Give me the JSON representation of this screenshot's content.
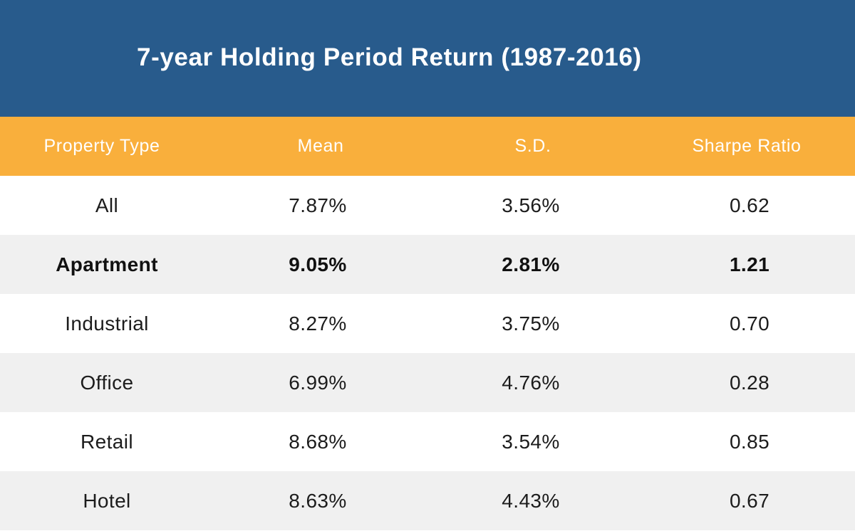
{
  "chart_data": {
    "type": "table",
    "title": "7-year Holding Period Return (1987-2016)",
    "columns": [
      "Property Type",
      "Mean",
      "S.D.",
      "Sharpe Ratio"
    ],
    "rows": [
      {
        "type": "All",
        "mean": "7.87%",
        "sd": "3.56%",
        "sharpe": "0.62",
        "highlight": false
      },
      {
        "type": "Apartment",
        "mean": "9.05%",
        "sd": "2.81%",
        "sharpe": "1.21",
        "highlight": true
      },
      {
        "type": "Industrial",
        "mean": "8.27%",
        "sd": "3.75%",
        "sharpe": "0.70",
        "highlight": false
      },
      {
        "type": "Office",
        "mean": "6.99%",
        "sd": "4.76%",
        "sharpe": "0.28",
        "highlight": false
      },
      {
        "type": "Retail",
        "mean": "8.68%",
        "sd": "3.54%",
        "sharpe": "0.85",
        "highlight": false
      },
      {
        "type": "Hotel",
        "mean": "8.63%",
        "sd": "4.43%",
        "sharpe": "0.67",
        "highlight": false
      }
    ]
  },
  "colors": {
    "title_background": "#285b8c",
    "header_background": "#f9af3c",
    "row_alt_background": "#f0f0f0",
    "row_background": "#ffffff"
  }
}
